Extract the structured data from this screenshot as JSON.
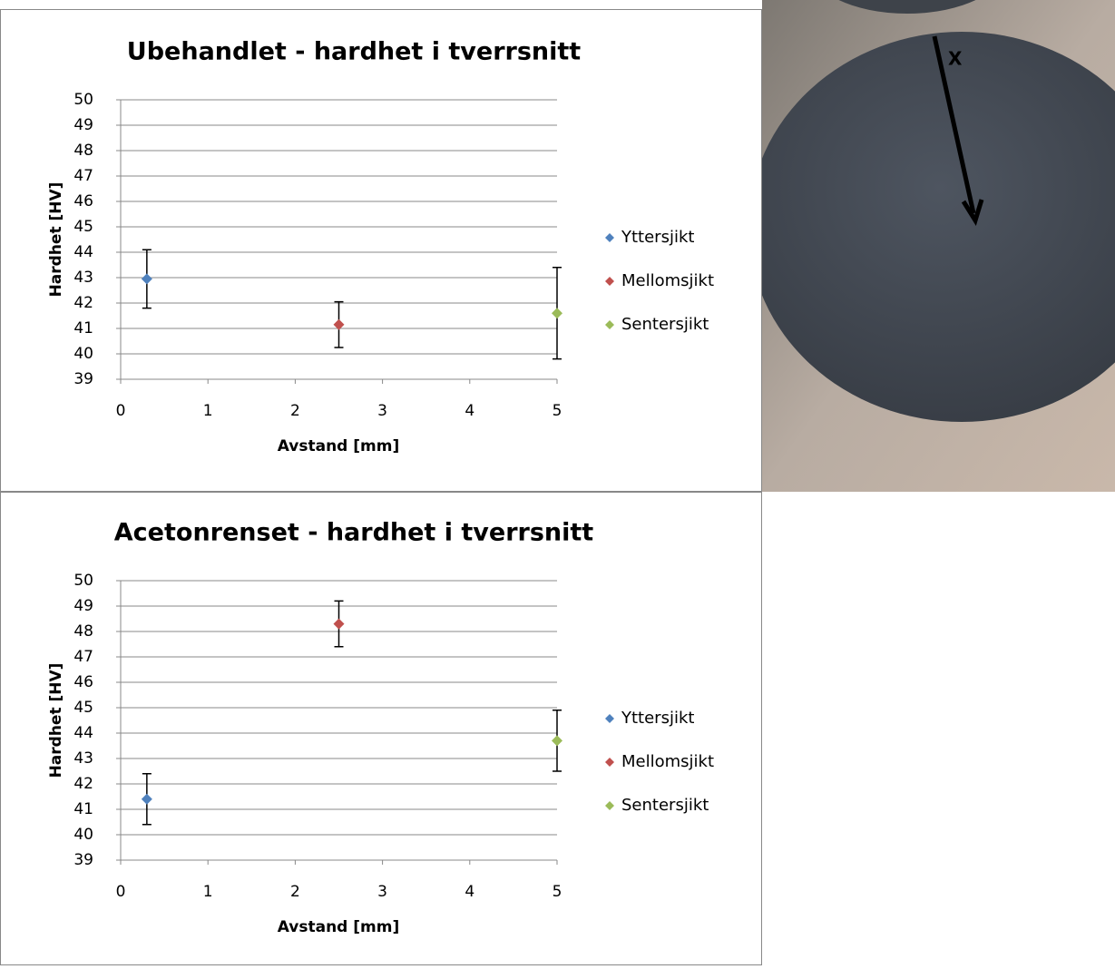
{
  "chart_data": [
    {
      "type": "scatter",
      "title": "Ubehandlet - hardhet i tverrsnitt",
      "x_label": "Avstand [mm]",
      "y_label": "Hardhet [HV]",
      "xlim": [
        0,
        5
      ],
      "ylim": [
        39,
        50
      ],
      "xticks": [
        0,
        1,
        2,
        3,
        4,
        5
      ],
      "yticks": [
        39,
        40,
        41,
        42,
        43,
        44,
        45,
        46,
        47,
        48,
        49,
        50
      ],
      "grid": true,
      "legend": "right",
      "series": [
        {
          "name": "Yttersjikt",
          "color": "#4f81bd",
          "x": [
            0.3
          ],
          "values": [
            42.95
          ],
          "errors": [
            1.15
          ]
        },
        {
          "name": "Mellomsjikt",
          "color": "#c0504d",
          "x": [
            2.5
          ],
          "values": [
            41.15
          ],
          "errors": [
            0.9
          ]
        },
        {
          "name": "Sentersjikt",
          "color": "#9bbb59",
          "x": [
            5
          ],
          "values": [
            41.6
          ],
          "errors": [
            1.8
          ]
        }
      ]
    },
    {
      "type": "scatter",
      "title": "Acetonrenset - hardhet i tverrsnitt",
      "x_label": "Avstand [mm]",
      "y_label": "Hardhet [HV]",
      "xlim": [
        0,
        5
      ],
      "ylim": [
        39,
        50
      ],
      "xticks": [
        0,
        1,
        2,
        3,
        4,
        5
      ],
      "yticks": [
        39,
        40,
        41,
        42,
        43,
        44,
        45,
        46,
        47,
        48,
        49,
        50
      ],
      "grid": true,
      "legend": "right",
      "series": [
        {
          "name": "Yttersjikt",
          "color": "#4f81bd",
          "x": [
            0.3
          ],
          "values": [
            41.4
          ],
          "errors": [
            1.0
          ]
        },
        {
          "name": "Mellomsjikt",
          "color": "#c0504d",
          "x": [
            2.5
          ],
          "values": [
            48.3
          ],
          "errors": [
            0.9
          ]
        },
        {
          "name": "Sentersjikt",
          "color": "#9bbb59",
          "x": [
            5
          ],
          "values": [
            43.7
          ],
          "errors": [
            1.2
          ]
        }
      ]
    }
  ],
  "image": {
    "annotation": "X"
  }
}
